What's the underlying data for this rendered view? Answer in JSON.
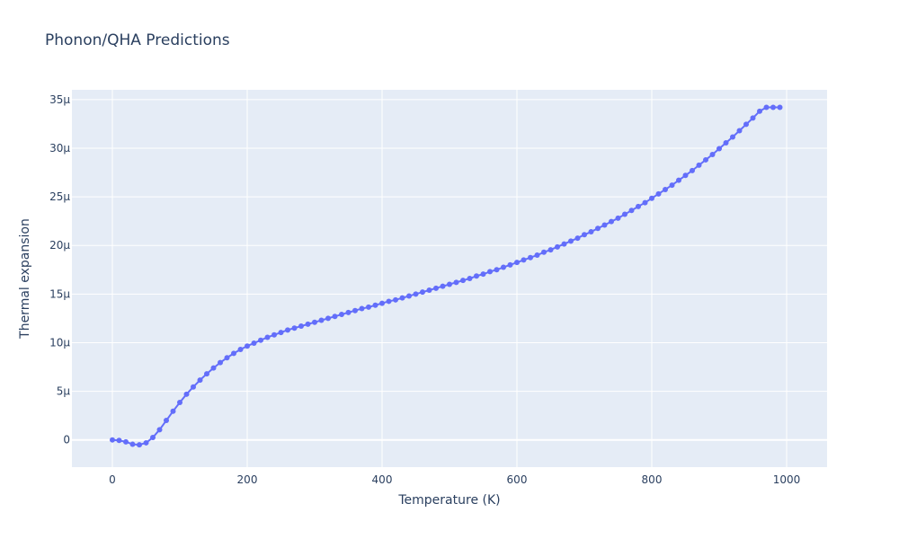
{
  "chart_data": {
    "type": "line",
    "title": "Phonon/QHA Predictions",
    "xlabel": "Temperature (K)",
    "ylabel": "Thermal expansion",
    "xlim": [
      -60,
      1060
    ],
    "ylim": [
      -2.8e-06,
      3.6e-05
    ],
    "x_ticks": [
      0,
      200,
      400,
      600,
      800,
      1000
    ],
    "x_tick_labels": [
      "0",
      "200",
      "400",
      "600",
      "800",
      "1000"
    ],
    "y_ticks": [
      0,
      5e-06,
      1e-05,
      1.5e-05,
      2e-05,
      2.5e-05,
      3e-05,
      3.5e-05
    ],
    "y_tick_labels": [
      "0",
      "5μ",
      "10μ",
      "15μ",
      "20μ",
      "25μ",
      "30μ",
      "35μ"
    ],
    "grid": true,
    "colors": {
      "line": "#636efa",
      "plot_bg": "#e5ecf6",
      "grid": "#ffffff",
      "text": "#2a3f5f"
    },
    "series": [
      {
        "x": [
          0,
          10,
          20,
          30,
          40,
          50,
          60,
          70,
          80,
          90,
          100,
          110,
          120,
          130,
          140,
          150,
          160,
          170,
          180,
          190,
          200,
          210,
          220,
          230,
          240,
          250,
          260,
          270,
          280,
          290,
          300,
          310,
          320,
          330,
          340,
          350,
          360,
          370,
          380,
          390,
          400,
          410,
          420,
          430,
          440,
          450,
          460,
          470,
          480,
          490,
          500,
          510,
          520,
          530,
          540,
          550,
          560,
          570,
          580,
          590,
          600,
          610,
          620,
          630,
          640,
          650,
          660,
          670,
          680,
          690,
          700,
          710,
          720,
          730,
          740,
          750,
          760,
          770,
          780,
          790,
          800,
          810,
          820,
          830,
          840,
          850,
          860,
          870,
          880,
          890,
          900,
          910,
          920,
          930,
          940,
          950,
          960,
          970,
          980,
          990
        ],
        "values": [
          0,
          -5e-08,
          -2e-07,
          -4.5e-07,
          -5e-07,
          -3e-07,
          2.5e-07,
          1.05e-06,
          2e-06,
          2.95e-06,
          3.85e-06,
          4.7e-06,
          5.45e-06,
          6.15e-06,
          6.8e-06,
          7.4e-06,
          7.95e-06,
          8.45e-06,
          8.9e-06,
          9.3e-06,
          9.65e-06,
          9.95e-06,
          1.025e-05,
          1.055e-05,
          1.08e-05,
          1.105e-05,
          1.13e-05,
          1.15e-05,
          1.17e-05,
          1.19e-05,
          1.21e-05,
          1.23e-05,
          1.25e-05,
          1.27e-05,
          1.29e-05,
          1.31e-05,
          1.33e-05,
          1.35e-05,
          1.365e-05,
          1.385e-05,
          1.405e-05,
          1.425e-05,
          1.44e-05,
          1.46e-05,
          1.48e-05,
          1.5e-05,
          1.52e-05,
          1.54e-05,
          1.56e-05,
          1.58e-05,
          1.6e-05,
          1.62e-05,
          1.64e-05,
          1.66e-05,
          1.685e-05,
          1.705e-05,
          1.73e-05,
          1.75e-05,
          1.775e-05,
          1.8e-05,
          1.825e-05,
          1.85e-05,
          1.875e-05,
          1.9e-05,
          1.93e-05,
          1.955e-05,
          1.985e-05,
          2.015e-05,
          2.045e-05,
          2.075e-05,
          2.11e-05,
          2.14e-05,
          2.175e-05,
          2.21e-05,
          2.245e-05,
          2.28e-05,
          2.32e-05,
          2.36e-05,
          2.4e-05,
          2.44e-05,
          2.485e-05,
          2.53e-05,
          2.575e-05,
          2.62e-05,
          2.67e-05,
          2.72e-05,
          2.77e-05,
          2.825e-05,
          2.88e-05,
          2.935e-05,
          2.995e-05,
          3.055e-05,
          3.115e-05,
          3.18e-05,
          3.245e-05,
          3.31e-05,
          3.38e-05,
          3.42e-05,
          3.42e-05,
          3.42e-05
        ]
      }
    ]
  }
}
